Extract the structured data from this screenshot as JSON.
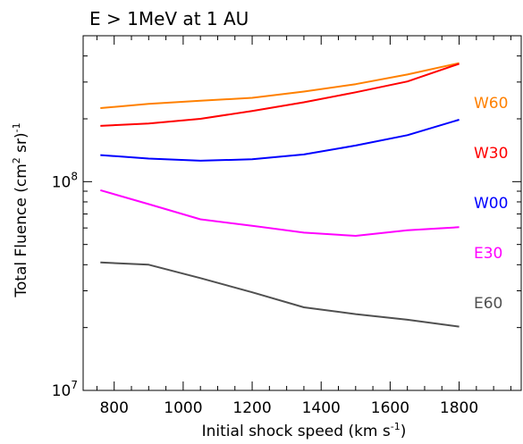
{
  "chart_data": {
    "type": "line",
    "title": "E > 1MeV at 1 AU",
    "xlabel": "Initial shock speed (km s",
    "xlabel_sup": "-1",
    "xlabel_end": ")",
    "ylabel": "Total Fluence (cm",
    "ylabel_sup1": "2",
    "ylabel_mid": " sr)",
    "ylabel_sup2": "-1",
    "xlim": [
      710,
      1980
    ],
    "ylim": [
      10000000,
      500000000
    ],
    "yscale": "log",
    "x_ticks": [
      800,
      1000,
      1200,
      1400,
      1600,
      1800
    ],
    "x_tick_labels": [
      "800",
      "1000",
      "1200",
      "1400",
      "1600",
      "1800"
    ],
    "y_major_ticks": [
      {
        "value": 10000000,
        "base": "10",
        "exp": "7"
      },
      {
        "value": 100000000,
        "base": "10",
        "exp": "8"
      }
    ],
    "x": [
      760,
      900,
      1050,
      1200,
      1350,
      1500,
      1650,
      1800
    ],
    "series": [
      {
        "name": "W60",
        "color": "#ff8000",
        "values": [
          225000000,
          236000000,
          244000000,
          252000000,
          270000000,
          293000000,
          326000000,
          370000000
        ]
      },
      {
        "name": "W30",
        "color": "#ff0000",
        "values": [
          185000000,
          190000000,
          200000000,
          218000000,
          240000000,
          268000000,
          302000000,
          367000000
        ]
      },
      {
        "name": "W00",
        "color": "#0000ff",
        "values": [
          134000000,
          129000000,
          126000000,
          128000000,
          135000000,
          149000000,
          167000000,
          198000000
        ]
      },
      {
        "name": "E30",
        "color": "#ff00ff",
        "values": [
          91000000,
          78000000,
          66000000,
          61500000,
          57000000,
          55000000,
          58500000,
          60500000
        ]
      },
      {
        "name": "E60",
        "color": "#505050",
        "values": [
          41000000,
          40000000,
          34500000,
          29500000,
          25000000,
          23200000,
          21800000,
          20200000
        ]
      }
    ],
    "grid": false,
    "legend": "right (labels beside lines)"
  }
}
